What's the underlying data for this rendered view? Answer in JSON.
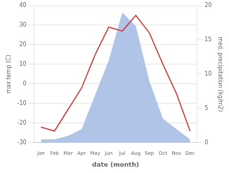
{
  "chart_data": {
    "type": "line",
    "xlabel": "date (month)",
    "ylabel": "max temp (C)",
    "y2label": "med. precipitation (kg/m2)",
    "categories": [
      "Jan",
      "Feb",
      "Mar",
      "Apr",
      "May",
      "Jun",
      "Jul",
      "Aug",
      "Sep",
      "Oct",
      "Nov",
      "Dec"
    ],
    "series": [
      {
        "type": "area",
        "axis": "y2",
        "color": "#b0c4e8",
        "values": [
          0.5,
          0.5,
          1.0,
          2.0,
          7,
          12,
          19,
          17,
          9,
          3.5,
          2,
          0.5
        ]
      },
      {
        "type": "line",
        "color": "#cc3333",
        "values": [
          -22,
          -24,
          -13,
          -2,
          15,
          29,
          27,
          35,
          26,
          10,
          -5,
          -24
        ]
      }
    ],
    "ylim": [
      -30,
      40
    ],
    "yticks": [
      -30,
      -20,
      -10,
      0,
      10,
      20,
      30,
      40
    ],
    "y2lim": [
      0,
      20
    ],
    "y2ticks": [
      0,
      5,
      10,
      15,
      20
    ],
    "grid": true
  }
}
